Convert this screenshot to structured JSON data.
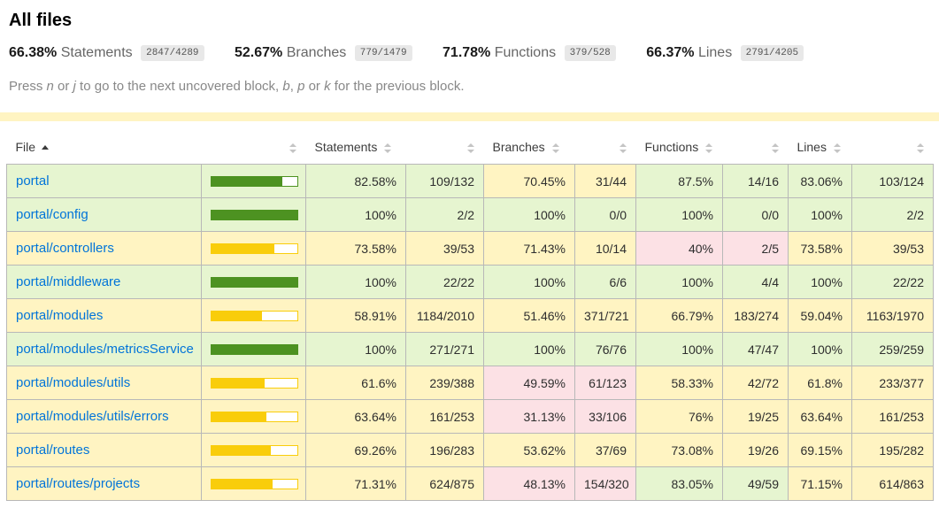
{
  "header": {
    "title": "All files",
    "metrics": [
      {
        "pct": "66.38%",
        "label": "Statements",
        "fraction": "2847/4289"
      },
      {
        "pct": "52.67%",
        "label": "Branches",
        "fraction": "779/1479"
      },
      {
        "pct": "71.78%",
        "label": "Functions",
        "fraction": "379/528"
      },
      {
        "pct": "66.37%",
        "label": "Lines",
        "fraction": "2791/4205"
      }
    ],
    "keyboard_hint": {
      "parts": [
        {
          "text": "Press "
        },
        {
          "text": "n",
          "italic": true
        },
        {
          "text": " or "
        },
        {
          "text": "j",
          "italic": true
        },
        {
          "text": " to go to the next uncovered block, "
        },
        {
          "text": "b",
          "italic": true
        },
        {
          "text": ", "
        },
        {
          "text": "p",
          "italic": true
        },
        {
          "text": " or "
        },
        {
          "text": "k",
          "italic": true
        },
        {
          "text": " for the previous block."
        }
      ]
    }
  },
  "table": {
    "columns": {
      "file": "File",
      "statements": "Statements",
      "branches": "Branches",
      "functions": "Functions",
      "lines": "Lines"
    },
    "sort": {
      "column": "File",
      "direction": "asc"
    },
    "rows": [
      {
        "file": "portal",
        "level": "high",
        "bar_pct": 82.58,
        "statements": {
          "pct": "82.58%",
          "raw": "109/132",
          "level": "high"
        },
        "branches": {
          "pct": "70.45%",
          "raw": "31/44",
          "level": "medium"
        },
        "functions": {
          "pct": "87.5%",
          "raw": "14/16",
          "level": "high"
        },
        "lines": {
          "pct": "83.06%",
          "raw": "103/124",
          "level": "high"
        }
      },
      {
        "file": "portal/config",
        "level": "high",
        "bar_pct": 100,
        "statements": {
          "pct": "100%",
          "raw": "2/2",
          "level": "high"
        },
        "branches": {
          "pct": "100%",
          "raw": "0/0",
          "level": "high"
        },
        "functions": {
          "pct": "100%",
          "raw": "0/0",
          "level": "high"
        },
        "lines": {
          "pct": "100%",
          "raw": "2/2",
          "level": "high"
        }
      },
      {
        "file": "portal/controllers",
        "level": "medium",
        "bar_pct": 73.58,
        "statements": {
          "pct": "73.58%",
          "raw": "39/53",
          "level": "medium"
        },
        "branches": {
          "pct": "71.43%",
          "raw": "10/14",
          "level": "medium"
        },
        "functions": {
          "pct": "40%",
          "raw": "2/5",
          "level": "low"
        },
        "lines": {
          "pct": "73.58%",
          "raw": "39/53",
          "level": "medium"
        }
      },
      {
        "file": "portal/middleware",
        "level": "high",
        "bar_pct": 100,
        "statements": {
          "pct": "100%",
          "raw": "22/22",
          "level": "high"
        },
        "branches": {
          "pct": "100%",
          "raw": "6/6",
          "level": "high"
        },
        "functions": {
          "pct": "100%",
          "raw": "4/4",
          "level": "high"
        },
        "lines": {
          "pct": "100%",
          "raw": "22/22",
          "level": "high"
        }
      },
      {
        "file": "portal/modules",
        "level": "medium",
        "bar_pct": 58.91,
        "statements": {
          "pct": "58.91%",
          "raw": "1184/2010",
          "level": "medium"
        },
        "branches": {
          "pct": "51.46%",
          "raw": "371/721",
          "level": "medium"
        },
        "functions": {
          "pct": "66.79%",
          "raw": "183/274",
          "level": "medium"
        },
        "lines": {
          "pct": "59.04%",
          "raw": "1163/1970",
          "level": "medium"
        }
      },
      {
        "file": "portal/modules/metricsService",
        "level": "high",
        "bar_pct": 100,
        "statements": {
          "pct": "100%",
          "raw": "271/271",
          "level": "high"
        },
        "branches": {
          "pct": "100%",
          "raw": "76/76",
          "level": "high"
        },
        "functions": {
          "pct": "100%",
          "raw": "47/47",
          "level": "high"
        },
        "lines": {
          "pct": "100%",
          "raw": "259/259",
          "level": "high"
        }
      },
      {
        "file": "portal/modules/utils",
        "level": "medium",
        "bar_pct": 61.6,
        "statements": {
          "pct": "61.6%",
          "raw": "239/388",
          "level": "medium"
        },
        "branches": {
          "pct": "49.59%",
          "raw": "61/123",
          "level": "low"
        },
        "functions": {
          "pct": "58.33%",
          "raw": "42/72",
          "level": "medium"
        },
        "lines": {
          "pct": "61.8%",
          "raw": "233/377",
          "level": "medium"
        }
      },
      {
        "file": "portal/modules/utils/errors",
        "level": "medium",
        "bar_pct": 63.64,
        "statements": {
          "pct": "63.64%",
          "raw": "161/253",
          "level": "medium"
        },
        "branches": {
          "pct": "31.13%",
          "raw": "33/106",
          "level": "low"
        },
        "functions": {
          "pct": "76%",
          "raw": "19/25",
          "level": "medium"
        },
        "lines": {
          "pct": "63.64%",
          "raw": "161/253",
          "level": "medium"
        }
      },
      {
        "file": "portal/routes",
        "level": "medium",
        "bar_pct": 69.26,
        "statements": {
          "pct": "69.26%",
          "raw": "196/283",
          "level": "medium"
        },
        "branches": {
          "pct": "53.62%",
          "raw": "37/69",
          "level": "medium"
        },
        "functions": {
          "pct": "73.08%",
          "raw": "19/26",
          "level": "medium"
        },
        "lines": {
          "pct": "69.15%",
          "raw": "195/282",
          "level": "medium"
        }
      },
      {
        "file": "portal/routes/projects",
        "level": "medium",
        "bar_pct": 71.31,
        "statements": {
          "pct": "71.31%",
          "raw": "624/875",
          "level": "medium"
        },
        "branches": {
          "pct": "48.13%",
          "raw": "154/320",
          "level": "low"
        },
        "functions": {
          "pct": "83.05%",
          "raw": "49/59",
          "level": "high"
        },
        "lines": {
          "pct": "71.15%",
          "raw": "614/863",
          "level": "medium"
        }
      }
    ]
  },
  "colors": {
    "high_bg": "#e6f5d0",
    "medium_bg": "#fff4c2",
    "low_bg": "#fce1e5",
    "bar_high": "#4d9221",
    "bar_medium": "#f9cd0b",
    "status_line": "#f9cd0b",
    "link": "#0074d9",
    "fraction_badge_bg": "#e8e8e8",
    "table_border": "#b8b8b8"
  }
}
